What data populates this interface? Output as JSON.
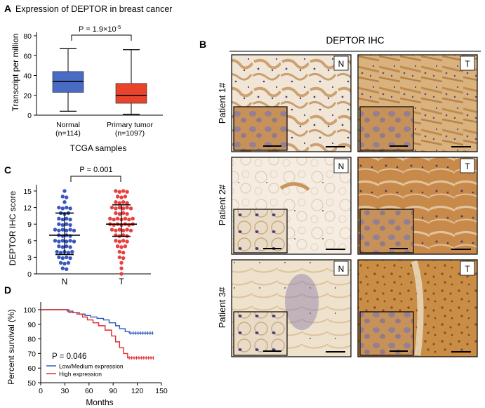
{
  "colors": {
    "normal": "#4a6bc4",
    "tumor": "#e8442c",
    "ihc_blue": "#3a57c0",
    "ihc_red": "#e84040",
    "km_blue": "#2a5cc0",
    "km_red": "#e02a2a",
    "tissue_brown": "#c8914a",
    "tissue_pale": "#efe2cf"
  },
  "panel_a": {
    "letter": "A",
    "title": "Expression of DEPTOR in breast cancer",
    "pvalue": "P = 1.9×10",
    "pvalue_exp": "-5",
    "ylabel": "Transcript per million",
    "xlabel": "TCGA samples",
    "yticks": [
      "0",
      "20",
      "40",
      "60",
      "80"
    ],
    "cat1_label": "Normal",
    "cat1_n": "(n=114)",
    "cat2_label": "Primary tumor",
    "cat2_n": "(n=1097)"
  },
  "panel_b": {
    "letter": "B",
    "title": "DEPTOR IHC",
    "rows": [
      "Patient 1#",
      "Patient 2#",
      "Patient 3#"
    ],
    "col_n": "N",
    "col_t": "T"
  },
  "panel_c": {
    "letter": "C",
    "pvalue": "P = 0.001",
    "ylabel": "DEPTOR IHC score",
    "yticks": [
      "0",
      "3",
      "6",
      "9",
      "12",
      "15"
    ],
    "xlabels": [
      "N",
      "T"
    ]
  },
  "panel_d": {
    "letter": "D",
    "ylabel": "Percent survival (%)",
    "xlabel": "Months",
    "xticks": [
      "0",
      "30",
      "60",
      "90",
      "120",
      "150"
    ],
    "yticks": [
      "50",
      "60",
      "70",
      "80",
      "90",
      "100"
    ],
    "pvalue": "P = 0.046",
    "legend_low": "Low/Medium expression",
    "legend_high": "High expression"
  },
  "chart_data": [
    {
      "id": "A",
      "type": "box",
      "title": "Expression of DEPTOR in breast cancer",
      "xlabel": "TCGA samples",
      "ylabel": "Transcript per million",
      "ylim": [
        0,
        80
      ],
      "categories": [
        "Normal (n=114)",
        "Primary tumor (n=1097)"
      ],
      "boxes": [
        {
          "name": "Normal",
          "min": 4,
          "q1": 23,
          "median": 34,
          "q3": 44,
          "max": 67
        },
        {
          "name": "Primary tumor",
          "min": 1,
          "q1": 12,
          "median": 20,
          "q3": 32,
          "max": 66
        }
      ],
      "annotation": "P = 1.9×10-5"
    },
    {
      "id": "C",
      "type": "scatter",
      "ylabel": "DEPTOR IHC score",
      "ylim": [
        0,
        15
      ],
      "categories": [
        "N",
        "T"
      ],
      "groups": [
        {
          "name": "N",
          "mean": 7,
          "sd_low": 3.5,
          "sd_high": 11,
          "points": [
            15,
            14,
            14,
            13,
            12,
            12,
            12,
            12,
            11,
            11,
            11,
            10,
            10,
            10,
            10,
            9,
            9,
            9,
            9,
            8,
            8,
            8,
            8,
            8,
            8,
            7,
            7,
            7,
            7,
            6,
            6,
            6,
            6,
            6,
            6,
            5,
            5,
            5,
            5,
            4,
            4,
            4,
            4,
            4,
            3,
            3,
            3,
            3,
            2,
            2,
            2,
            1,
            1
          ]
        },
        {
          "name": "T",
          "mean": 9,
          "sd_low": 6.8,
          "sd_high": 12.5,
          "points": [
            15,
            15,
            15,
            15,
            14,
            14,
            14,
            13,
            13,
            13,
            13,
            12,
            12,
            12,
            12,
            12,
            12,
            11,
            11,
            11,
            11,
            10,
            10,
            10,
            10,
            10,
            10,
            10,
            9,
            9,
            9,
            9,
            9,
            9,
            9,
            8,
            8,
            8,
            8,
            8,
            8,
            7,
            7,
            7,
            7,
            6,
            6,
            6,
            6,
            5,
            5,
            5,
            4,
            4,
            3,
            3,
            2,
            1,
            0
          ]
        }
      ],
      "annotation": "P = 0.001"
    },
    {
      "id": "D",
      "type": "line",
      "xlabel": "Months",
      "ylabel": "Percent survival (%)",
      "xlim": [
        0,
        150
      ],
      "ylim": [
        50,
        100
      ],
      "series": [
        {
          "name": "Low/Medium expression",
          "x": [
            0,
            28,
            33,
            40,
            48,
            55,
            62,
            70,
            78,
            85,
            93,
            98,
            105,
            110,
            140
          ],
          "y": [
            100,
            100,
            99,
            98,
            97,
            96,
            95,
            94,
            93,
            91,
            89,
            87,
            85,
            84,
            84
          ]
        },
        {
          "name": "High expression",
          "x": [
            0,
            28,
            35,
            45,
            52,
            58,
            65,
            72,
            80,
            88,
            93,
            98,
            103,
            108,
            140
          ],
          "y": [
            100,
            100,
            98,
            97,
            95,
            93,
            91,
            89,
            86,
            82,
            78,
            74,
            70,
            67,
            67
          ]
        }
      ],
      "annotation": "P = 0.046"
    }
  ]
}
